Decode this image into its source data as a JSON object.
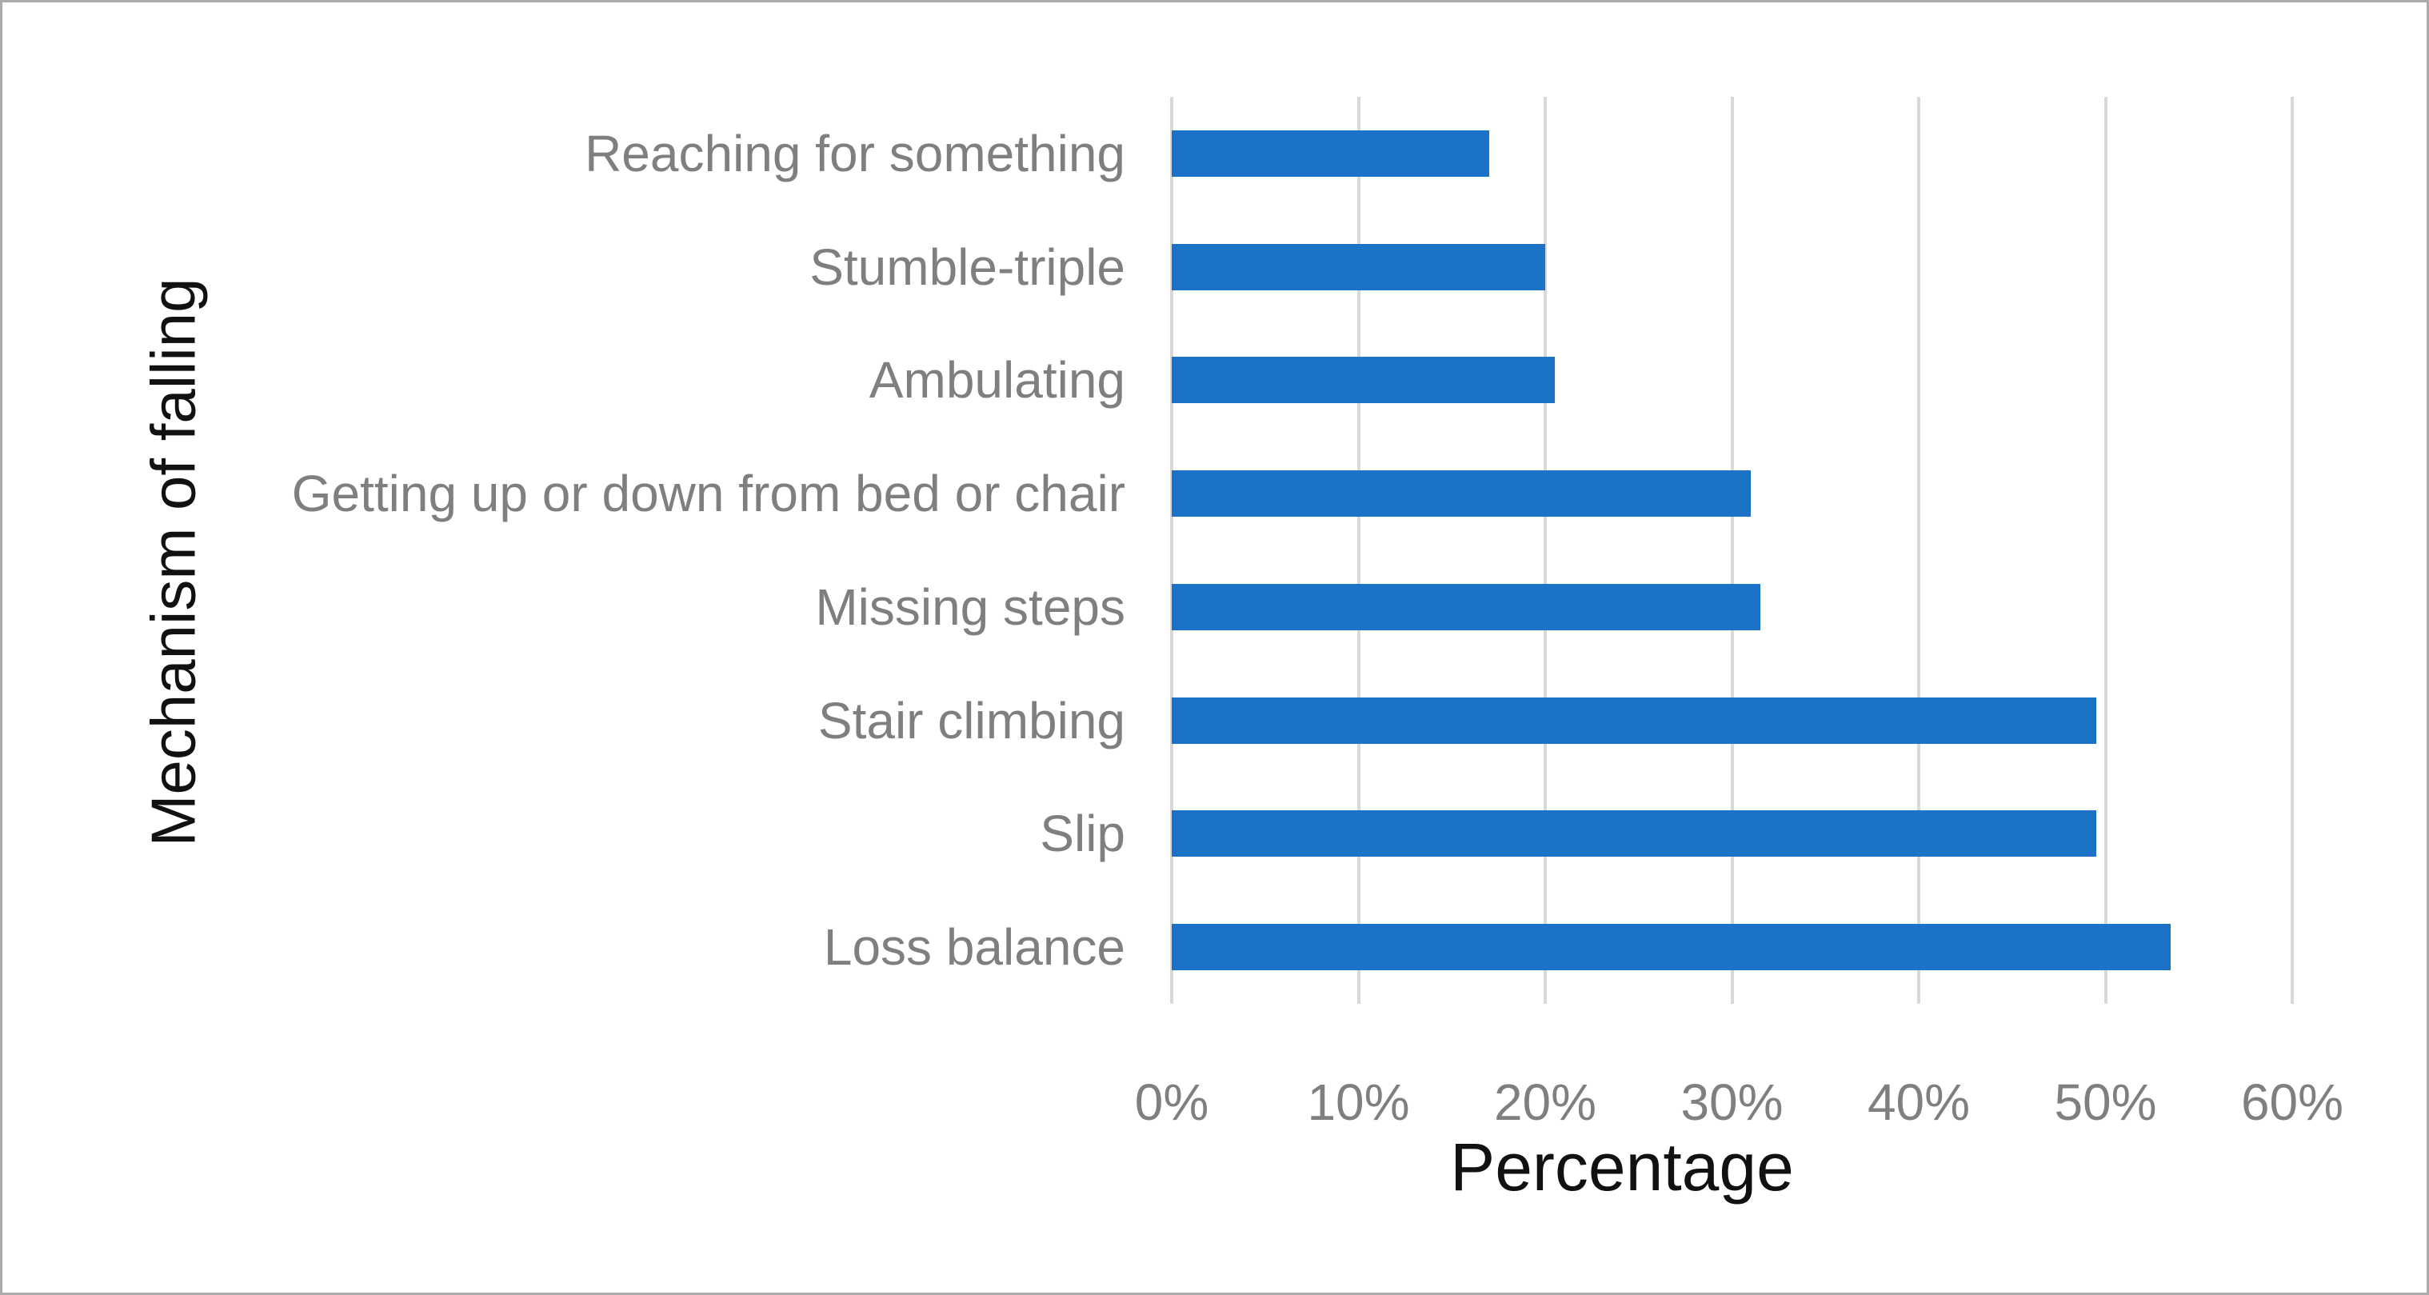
{
  "chart_data": {
    "type": "bar",
    "orientation": "horizontal",
    "title": "",
    "xlabel": "Percentage",
    "ylabel": "Mechanism of falling",
    "categories": [
      "Reaching for something",
      "Stumble-triple",
      "Ambulating",
      "Getting up or down from bed or chair",
      "Missing steps",
      "Stair climbing",
      "Slip",
      "Loss balance"
    ],
    "values": [
      17,
      20,
      20.5,
      31,
      31.5,
      49.5,
      49.5,
      53.5
    ],
    "x_ticks": [
      {
        "value": 0,
        "label": "0%"
      },
      {
        "value": 10,
        "label": "10%"
      },
      {
        "value": 20,
        "label": "20%"
      },
      {
        "value": 30,
        "label": "30%"
      },
      {
        "value": 40,
        "label": "40%"
      },
      {
        "value": 50,
        "label": "50%"
      },
      {
        "value": 60,
        "label": "60%"
      }
    ],
    "xlim": [
      0,
      60
    ],
    "grid": true,
    "legend": "none",
    "colors": {
      "bar": "#1b72c7",
      "gridline": "#d9d9d9",
      "tick_text": "#7f7f7f",
      "category_text": "#7f7f7f",
      "axis_title_text": "#111111",
      "figure_border": "#ababab",
      "background": "#ffffff"
    }
  }
}
